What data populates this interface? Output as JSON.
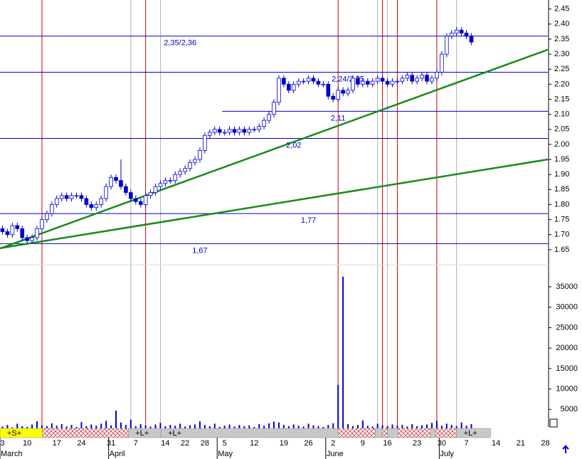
{
  "chart_data": {
    "type": "candlestick",
    "categories": [
      "3",
      null,
      null,
      null,
      null,
      "10",
      null,
      null,
      null,
      null,
      null,
      "17",
      null,
      null,
      null,
      null,
      "24",
      null,
      null,
      null,
      null,
      null,
      "31",
      null,
      null,
      null,
      null,
      "7",
      null,
      null,
      null,
      null,
      null,
      "14",
      null,
      null,
      null,
      "22",
      null,
      null,
      null,
      "28",
      null,
      null,
      null,
      "5",
      null,
      null,
      null,
      null,
      null,
      "12",
      null,
      null,
      null,
      null,
      null,
      "19",
      null,
      null,
      null,
      null,
      "26",
      null,
      null,
      null,
      null,
      "2",
      null,
      null,
      null,
      null,
      null,
      "9",
      null,
      null,
      null,
      null,
      "16",
      null,
      null,
      null,
      null,
      null,
      "23",
      null,
      null,
      null,
      null,
      "30",
      null,
      null,
      null,
      null,
      "7",
      null,
      null,
      null,
      null,
      null,
      "14",
      null,
      null,
      null,
      null,
      "21",
      null,
      null,
      null,
      null,
      "28"
    ],
    "months": [
      {
        "label": "March",
        "at": 0
      },
      {
        "label": "April",
        "at": 22
      },
      {
        "label": "May",
        "at": 44
      },
      {
        "label": "June",
        "at": 66
      },
      {
        "label": "July",
        "at": 89
      }
    ],
    "open": [
      1.72,
      1.71,
      1.7,
      1.73,
      1.72,
      1.69,
      1.68,
      1.69,
      1.72,
      1.75,
      1.77,
      1.8,
      1.82,
      1.83,
      1.82,
      1.83,
      1.83,
      1.82,
      1.8,
      1.79,
      1.8,
      1.82,
      1.86,
      1.89,
      1.88,
      1.86,
      1.84,
      1.82,
      1.81,
      1.8,
      1.83,
      1.84,
      1.86,
      1.87,
      1.88,
      1.88,
      1.9,
      1.91,
      1.92,
      1.94,
      1.95,
      1.98,
      2.03,
      2.04,
      2.05,
      2.04,
      2.04,
      2.05,
      2.04,
      2.05,
      2.04,
      2.05,
      2.05,
      2.06,
      2.08,
      2.1,
      2.14,
      2.22,
      2.2,
      2.18,
      2.2,
      2.21,
      2.21,
      2.22,
      2.21,
      2.2,
      2.2,
      2.16,
      2.15,
      2.18,
      2.17,
      2.18,
      2.22,
      2.2,
      2.21,
      2.2,
      2.21,
      2.22,
      2.21,
      2.2,
      2.21,
      2.21,
      2.22,
      2.23,
      2.21,
      2.22,
      2.23,
      2.21,
      2.22,
      2.24,
      2.3,
      2.36,
      2.37,
      2.38,
      2.37,
      2.36,
      null,
      null,
      null,
      null,
      null,
      null,
      null,
      null,
      null,
      null,
      null,
      null,
      null,
      null,
      null
    ],
    "high": [
      1.73,
      1.72,
      1.74,
      1.74,
      1.73,
      1.7,
      1.7,
      1.73,
      1.76,
      1.78,
      1.81,
      1.83,
      1.84,
      1.84,
      1.84,
      1.84,
      1.84,
      1.83,
      1.81,
      1.81,
      1.83,
      1.87,
      1.9,
      1.9,
      1.95,
      1.87,
      1.85,
      1.83,
      1.82,
      1.84,
      1.85,
      1.87,
      1.88,
      1.89,
      1.89,
      1.91,
      1.92,
      1.93,
      1.95,
      1.96,
      1.99,
      2.04,
      2.05,
      2.06,
      2.06,
      2.05,
      2.06,
      2.06,
      2.06,
      2.06,
      2.06,
      2.06,
      2.07,
      2.09,
      2.11,
      2.15,
      2.23,
      2.23,
      2.21,
      2.21,
      2.22,
      2.22,
      2.23,
      2.23,
      2.22,
      2.21,
      2.21,
      2.17,
      2.19,
      2.19,
      2.19,
      2.23,
      2.23,
      2.22,
      2.22,
      2.22,
      2.23,
      2.23,
      2.22,
      2.22,
      2.22,
      2.23,
      2.24,
      2.24,
      2.23,
      2.24,
      2.24,
      2.23,
      2.25,
      2.31,
      2.37,
      2.38,
      2.39,
      2.39,
      2.38,
      2.37,
      null,
      null,
      null,
      null,
      null,
      null,
      null,
      null,
      null,
      null,
      null,
      null,
      null,
      null,
      null
    ],
    "low": [
      1.7,
      1.69,
      1.69,
      1.71,
      1.68,
      1.67,
      1.67,
      1.68,
      1.71,
      1.74,
      1.76,
      1.79,
      1.81,
      1.81,
      1.81,
      1.82,
      1.81,
      1.79,
      1.78,
      1.78,
      1.79,
      1.81,
      1.85,
      1.87,
      1.85,
      1.83,
      1.81,
      1.8,
      1.79,
      1.79,
      1.82,
      1.83,
      1.85,
      1.86,
      1.87,
      1.87,
      1.89,
      1.9,
      1.91,
      1.93,
      1.94,
      1.97,
      2.02,
      2.03,
      2.03,
      2.03,
      2.03,
      2.03,
      2.03,
      2.03,
      2.03,
      2.04,
      2.04,
      2.05,
      2.07,
      2.09,
      2.13,
      2.19,
      2.17,
      2.17,
      2.19,
      2.2,
      2.2,
      2.2,
      2.19,
      2.19,
      2.15,
      2.14,
      2.14,
      2.16,
      2.16,
      2.17,
      2.19,
      2.19,
      2.19,
      2.19,
      2.2,
      2.2,
      2.19,
      2.19,
      2.2,
      2.2,
      2.21,
      2.2,
      2.2,
      2.21,
      2.2,
      2.2,
      2.21,
      2.23,
      2.29,
      2.35,
      2.36,
      2.36,
      2.35,
      2.33,
      null,
      null,
      null,
      null,
      null,
      null,
      null,
      null,
      null,
      null,
      null,
      null,
      null,
      null,
      null
    ],
    "close": [
      1.71,
      1.7,
      1.73,
      1.72,
      1.69,
      1.68,
      1.69,
      1.72,
      1.75,
      1.77,
      1.8,
      1.82,
      1.83,
      1.82,
      1.83,
      1.83,
      1.82,
      1.8,
      1.79,
      1.8,
      1.82,
      1.86,
      1.89,
      1.88,
      1.86,
      1.84,
      1.82,
      1.81,
      1.8,
      1.83,
      1.84,
      1.86,
      1.87,
      1.88,
      1.88,
      1.9,
      1.91,
      1.92,
      1.94,
      1.95,
      1.98,
      2.03,
      2.04,
      2.05,
      2.04,
      2.04,
      2.05,
      2.04,
      2.05,
      2.04,
      2.05,
      2.05,
      2.06,
      2.08,
      2.1,
      2.14,
      2.22,
      2.2,
      2.18,
      2.2,
      2.21,
      2.21,
      2.22,
      2.21,
      2.2,
      2.2,
      2.16,
      2.15,
      2.18,
      2.17,
      2.18,
      2.22,
      2.2,
      2.21,
      2.2,
      2.21,
      2.22,
      2.21,
      2.2,
      2.21,
      2.21,
      2.22,
      2.23,
      2.21,
      2.22,
      2.23,
      2.21,
      2.22,
      2.24,
      2.3,
      2.36,
      2.37,
      2.38,
      2.37,
      2.36,
      2.34,
      null,
      null,
      null,
      null,
      null,
      null,
      null,
      null,
      null,
      null,
      null,
      null,
      null,
      null,
      null
    ],
    "volume": [
      800,
      1200,
      600,
      1500,
      900,
      700,
      1300,
      2100,
      1100,
      900,
      1600,
      1000,
      1400,
      800,
      1200,
      700,
      1900,
      900,
      1300,
      1000,
      1500,
      2200,
      1100,
      4700,
      1800,
      1200,
      2500,
      900,
      1400,
      1100,
      800,
      1300,
      1700,
      900,
      1200,
      1000,
      1500,
      800,
      1100,
      1300,
      2100,
      1200,
      900,
      1500,
      700,
      1000,
      1300,
      800,
      1200,
      900,
      1100,
      700,
      1400,
      1000,
      1600,
      2000,
      1800,
      1200,
      900,
      1300,
      1000,
      800,
      1500,
      1100,
      900,
      700,
      1200,
      1600,
      11000,
      37500,
      1400,
      900,
      1200,
      2300,
      1000,
      800,
      1500,
      1100,
      900,
      1300,
      1000,
      1200,
      800,
      1400,
      900,
      1100,
      1300,
      1700,
      2200,
      1000,
      1500,
      1200,
      900,
      1800,
      1000,
      1400,
      null,
      null,
      null,
      null,
      null,
      null,
      null,
      null,
      null,
      null,
      null,
      null,
      null,
      null,
      null
    ],
    "color": "#0000cc",
    "volume_color": "#0000cc",
    "ylim": [
      1.6,
      2.48
    ],
    "yticks": [
      1.65,
      {
        "value": 1.7,
        "label": "1.70"
      },
      1.75,
      {
        "value": 1.8,
        "label": "1.80"
      },
      1.85,
      {
        "value": 1.9,
        "label": "1.90"
      },
      1.95,
      {
        "value": 2,
        "label": "2.00"
      },
      2.05,
      {
        "value": 2.1,
        "label": "2.10"
      },
      2.15,
      {
        "value": 2.2,
        "label": "2.20"
      },
      2.25,
      {
        "value": 2.3,
        "label": "2.30"
      },
      2.35,
      {
        "value": 2.4,
        "label": "2.40"
      },
      2.45
    ],
    "volume_ylim": [
      0,
      40400
    ],
    "volume_ticks": [
      5000,
      10000,
      15000,
      20000,
      25000,
      30000,
      35000
    ],
    "levels": [
      {
        "value": 2.36,
        "label": "2,35/2,36",
        "from": 0,
        "label_at": 36
      },
      {
        "value": 2.24,
        "label": "2,24/2,25",
        "from": 0,
        "label_at": 70
      },
      {
        "value": 2.11,
        "label": "2,11",
        "from": 45,
        "label_at": 68
      },
      {
        "value": 2.02,
        "label": "2,02",
        "from": 0,
        "label_at": 59
      },
      {
        "value": 1.77,
        "label": "1,77",
        "from": 0,
        "label_at": 62
      },
      {
        "value": 1.67,
        "label": "1,67",
        "from": 0,
        "label_at": 40
      }
    ],
    "level_color": "#0000cc",
    "trend_lines": [
      {
        "from": {
          "index": 0,
          "value": 1.654
        },
        "to": {
          "index": 110,
          "value": 2.315
        }
      },
      {
        "from": {
          "index": 0,
          "value": 1.655
        },
        "to": {
          "index": 110,
          "value": 1.95
        }
      }
    ],
    "trend_color": "#1a8a1a",
    "vertical_lines": [
      {
        "index": 8,
        "color": "#cc0000"
      },
      {
        "index": 29,
        "color": "#cc0000"
      },
      {
        "index": 68,
        "color": "#cc0000"
      },
      {
        "index": 77,
        "color": "#cc0000"
      },
      {
        "index": 80,
        "color": "#cc0000"
      },
      {
        "index": 88,
        "color": "#cc0000"
      },
      {
        "index": 26,
        "color": "#b0b0b0"
      },
      {
        "index": 32,
        "color": "#b0b0b0"
      },
      {
        "index": 76,
        "color": "#b0b0b0"
      },
      {
        "index": 78,
        "color": "#b0b0b0"
      },
      {
        "index": 92,
        "color": "#b0b0b0"
      }
    ],
    "signal_bands": [
      {
        "label": "+S+",
        "from": 0,
        "to": 8.6,
        "color": "#ffff00"
      },
      {
        "from": 8.6,
        "to": 26,
        "color": "hatch"
      },
      {
        "label": "+L+",
        "from": 26,
        "to": 32.6,
        "color": "#c8c8c8"
      },
      {
        "label": "+L+",
        "from": 32.6,
        "to": 68.6,
        "color": "#c8c8c8"
      },
      {
        "from": 68.6,
        "to": 76,
        "color": "hatch"
      },
      {
        "from": 76,
        "to": 77.4,
        "color": "#c8c8c8"
      },
      {
        "from": 77.4,
        "to": 78.5,
        "color": "hatch"
      },
      {
        "from": 78.5,
        "to": 80.7,
        "color": "#c8c8c8"
      },
      {
        "from": 80.7,
        "to": 87.2,
        "color": "hatch"
      },
      {
        "from": 87.2,
        "to": 88.2,
        "color": "#c8c8c8"
      },
      {
        "from": 88.2,
        "to": 92.5,
        "color": "hatch"
      },
      {
        "label": "+L+",
        "from": 92.5,
        "to": 99.4,
        "color": "#c8c8c8"
      }
    ]
  }
}
